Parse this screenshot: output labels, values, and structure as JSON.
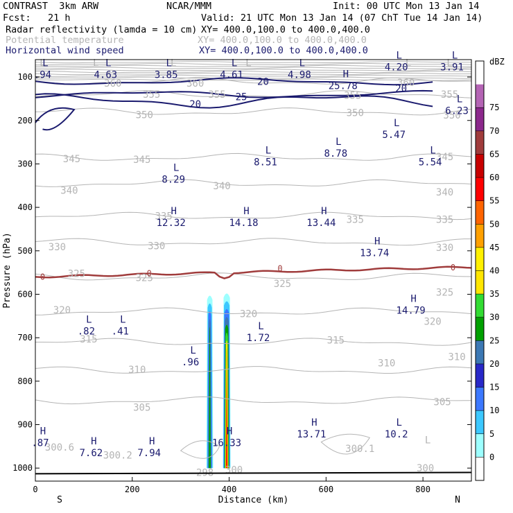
{
  "header": {
    "model": "CONTRAST  3km ARW",
    "org": "NCAR/MMM",
    "init": "Init: 00 UTC Mon 13 Jan 14",
    "fcst": "Fcst:   21 h",
    "valid": "Valid: 21 UTC Mon 13 Jan 14 (07 ChT Tue 14 Jan 14)",
    "fields": [
      {
        "name": "Radar reflectivity (lamda = 10 cm)",
        "xy": "XY= 400.0,100.0 to 400.0,400.0",
        "color": "#000000"
      },
      {
        "name": "Potential temperature",
        "xy": "XY= 400.0,100.0 to 400.0,400.0",
        "color": "#b4b4b4"
      },
      {
        "name": "Horizontal wind speed",
        "xy": "XY= 400.0,100.0 to 400.0,400.0",
        "color": "#1a1a6e"
      }
    ]
  },
  "chart_data": {
    "type": "cross-section",
    "xlabel": "Distance (km)",
    "ylabel": "Pressure (hPa)",
    "xlim": [
      0,
      900
    ],
    "ylim": [
      1030,
      60
    ],
    "x_ticks": [
      0,
      200,
      400,
      600,
      800
    ],
    "y_ticks": [
      100,
      200,
      300,
      400,
      500,
      600,
      700,
      800,
      900,
      1000
    ],
    "direction_labels": {
      "left": "S",
      "right": "N"
    },
    "colorbar": {
      "unit": "dBZ",
      "levels": [
        0,
        5,
        10,
        15,
        20,
        25,
        30,
        35,
        40,
        45,
        50,
        55,
        60,
        65,
        70,
        75
      ],
      "colors": [
        "#ffffff",
        "#9dffff",
        "#3cc8ff",
        "#3c78ff",
        "#2828c8",
        "#3c78b4",
        "#00a000",
        "#32dc32",
        "#ffe600",
        "#fff000",
        "#ffa000",
        "#ff6400",
        "#ff0000",
        "#c80000",
        "#a03c3c",
        "#8c288c",
        "#b464b4",
        "#ffffff"
      ]
    },
    "theta_contours": [
      {
        "value": 360,
        "p": 110
      },
      {
        "value": 355,
        "p": 140
      },
      {
        "value": 350,
        "p": 180
      },
      {
        "value": 345,
        "p": 285
      },
      {
        "value": 340,
        "p": 345
      },
      {
        "value": 335,
        "p": 420
      },
      {
        "value": 330,
        "p": 480
      },
      {
        "value": 325,
        "p": 560
      },
      {
        "value": 320,
        "p": 640
      },
      {
        "value": 315,
        "p": 710
      },
      {
        "value": 310,
        "p": 775
      },
      {
        "value": 305,
        "p": 845
      }
    ],
    "theta_labels": [
      {
        "text": "360",
        "x": 160,
        "p": 114
      },
      {
        "text": "360",
        "x": 330,
        "p": 114
      },
      {
        "text": "360",
        "x": 765,
        "p": 113
      },
      {
        "text": "355",
        "x": 240,
        "p": 140
      },
      {
        "text": "355",
        "x": 375,
        "p": 140
      },
      {
        "text": "355",
        "x": 655,
        "p": 142
      },
      {
        "text": "355",
        "x": 855,
        "p": 140
      },
      {
        "text": "350",
        "x": 225,
        "p": 187
      },
      {
        "text": "350",
        "x": 660,
        "p": 182
      },
      {
        "text": "350",
        "x": 860,
        "p": 188
      },
      {
        "text": "345",
        "x": 75,
        "p": 288
      },
      {
        "text": "345",
        "x": 220,
        "p": 290
      },
      {
        "text": "345",
        "x": 845,
        "p": 283
      },
      {
        "text": "340",
        "x": 70,
        "p": 361
      },
      {
        "text": "340",
        "x": 385,
        "p": 350
      },
      {
        "text": "340",
        "x": 845,
        "p": 365
      },
      {
        "text": "335",
        "x": 265,
        "p": 420
      },
      {
        "text": "335",
        "x": 660,
        "p": 428
      },
      {
        "text": "335",
        "x": 845,
        "p": 428
      },
      {
        "text": "330",
        "x": 45,
        "p": 491
      },
      {
        "text": "330",
        "x": 250,
        "p": 488
      },
      {
        "text": "330",
        "x": 845,
        "p": 492
      },
      {
        "text": "325",
        "x": 85,
        "p": 552
      },
      {
        "text": "325",
        "x": 225,
        "p": 562
      },
      {
        "text": "325",
        "x": 510,
        "p": 575
      },
      {
        "text": "325",
        "x": 845,
        "p": 595
      },
      {
        "text": "320",
        "x": 55,
        "p": 636
      },
      {
        "text": "320",
        "x": 440,
        "p": 645
      },
      {
        "text": "320",
        "x": 820,
        "p": 662
      },
      {
        "text": "315",
        "x": 110,
        "p": 703
      },
      {
        "text": "315",
        "x": 620,
        "p": 705
      },
      {
        "text": "310",
        "x": 210,
        "p": 773
      },
      {
        "text": "310",
        "x": 725,
        "p": 758
      },
      {
        "text": "310",
        "x": 870,
        "p": 744
      },
      {
        "text": "305",
        "x": 220,
        "p": 860
      },
      {
        "text": "305",
        "x": 840,
        "p": 847
      },
      {
        "text": "300.6",
        "x": 50,
        "p": 952
      },
      {
        "text": "300.2",
        "x": 170,
        "p": 970
      },
      {
        "text": "300.1",
        "x": 670,
        "p": 955
      },
      {
        "text": "300",
        "x": 805,
        "p": 1000
      },
      {
        "text": "298",
        "x": 350,
        "p": 1010
      },
      {
        "text": "300",
        "x": 410,
        "p": 1004
      }
    ],
    "theta_extremes": [
      {
        "type": "L",
        "x": 15,
        "p": 67
      },
      {
        "type": "L",
        "x": 125,
        "p": 67
      },
      {
        "type": "L",
        "x": 285,
        "p": 67
      },
      {
        "type": "L",
        "x": 440,
        "p": 67
      },
      {
        "type": "L",
        "x": 770,
        "p": 67
      },
      {
        "type": "L",
        "x": 855,
        "p": 67
      },
      {
        "type": "L",
        "x": 810,
        "p": 935
      }
    ],
    "wind_speed_contours": [
      {
        "value": 20,
        "p": 110
      },
      {
        "value": 25,
        "p": 140
      },
      {
        "value": 20,
        "p": 155
      }
    ],
    "wind_speed_labels": [
      {
        "text": "20",
        "x": 470,
        "p": 110
      },
      {
        "text": "25",
        "x": 425,
        "p": 145
      },
      {
        "text": "20",
        "x": 755,
        "p": 126
      },
      {
        "text": "20",
        "x": 330,
        "p": 162
      }
    ],
    "freezing_level": {
      "value": 0,
      "p": 560
    },
    "freezing_labels": [
      {
        "text": "0",
        "x": 15,
        "p": 560
      },
      {
        "text": "0",
        "x": 235,
        "p": 552
      },
      {
        "text": "0",
        "x": 505,
        "p": 541
      },
      {
        "text": "0",
        "x": 862,
        "p": 539
      }
    ],
    "wind_extremes": [
      {
        "type": "L",
        "value": ".94",
        "x": 15,
        "p": 85
      },
      {
        "type": "L",
        "value": "4.63",
        "x": 145,
        "p": 85
      },
      {
        "type": "L",
        "value": "3.85",
        "x": 270,
        "p": 85
      },
      {
        "type": "L",
        "value": "4.61",
        "x": 405,
        "p": 85
      },
      {
        "type": "L",
        "value": "4.98",
        "x": 545,
        "p": 85
      },
      {
        "type": "H",
        "value": "25.78",
        "x": 635,
        "p": 110
      },
      {
        "type": "L",
        "value": "4.20",
        "x": 745,
        "p": 67
      },
      {
        "type": "L",
        "value": "3.91",
        "x": 860,
        "p": 67
      },
      {
        "type": "L",
        "value": "6.23",
        "x": 870,
        "p": 168
      },
      {
        "type": "L",
        "value": "5.47",
        "x": 740,
        "p": 223
      },
      {
        "type": "L",
        "value": "8.78",
        "x": 620,
        "p": 266
      },
      {
        "type": "L",
        "value": "8.51",
        "x": 475,
        "p": 286
      },
      {
        "type": "L",
        "value": "5.54",
        "x": 815,
        "p": 286
      },
      {
        "type": "L",
        "value": "8.29",
        "x": 285,
        "p": 326
      },
      {
        "type": "H",
        "value": "12.32",
        "x": 280,
        "p": 425
      },
      {
        "type": "H",
        "value": "14.18",
        "x": 430,
        "p": 425
      },
      {
        "type": "H",
        "value": "13.44",
        "x": 590,
        "p": 425
      },
      {
        "type": "H",
        "value": "13.74",
        "x": 700,
        "p": 495
      },
      {
        "type": "H",
        "value": "14.79",
        "x": 775,
        "p": 627
      },
      {
        "type": "L",
        "value": ".82",
        "x": 105,
        "p": 675
      },
      {
        "type": "L",
        "value": ".41",
        "x": 175,
        "p": 675
      },
      {
        "type": "L",
        "value": "1.72",
        "x": 460,
        "p": 690
      },
      {
        "type": "L",
        "value": ".96",
        "x": 320,
        "p": 746
      },
      {
        "type": "H",
        "value": "13.71",
        "x": 570,
        "p": 912
      },
      {
        "type": "L",
        "value": "10.2",
        "x": 745,
        "p": 912
      },
      {
        "type": "H",
        "value": ".87",
        "x": 10,
        "p": 932
      },
      {
        "type": "H",
        "value": "16.33",
        "x": 395,
        "p": 932
      },
      {
        "type": "H",
        "value": "7.62",
        "x": 115,
        "p": 955
      },
      {
        "type": "H",
        "value": "7.94",
        "x": 235,
        "p": 955
      }
    ],
    "reflectivity_cores": [
      {
        "x_center": 360,
        "p_top": 600,
        "p_bottom": 1000,
        "max_dbz": 25
      },
      {
        "x_center": 395,
        "p_top": 595,
        "p_bottom": 1000,
        "max_dbz": 45
      }
    ]
  }
}
